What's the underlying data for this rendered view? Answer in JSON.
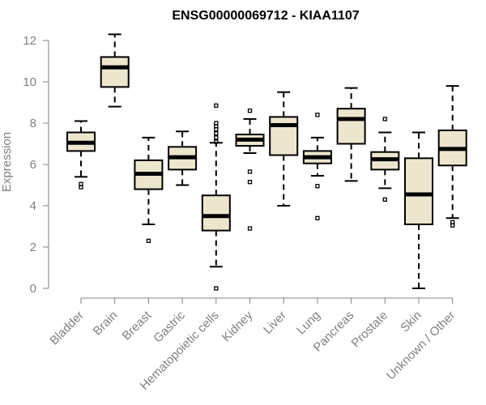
{
  "chart_data": {
    "type": "boxplot",
    "title": "ENSG00000069712 - KIAA1107",
    "xlabel": "",
    "ylabel": "Expression",
    "ylim": [
      0,
      12.2
    ],
    "yticks": [
      0,
      2,
      4,
      6,
      8,
      10,
      12
    ],
    "box_color": "#ede6ce",
    "categories": [
      "Bladder",
      "Brain",
      "Breast",
      "Gastric",
      "Hematopoietic cells",
      "Kidney",
      "Liver",
      "Lung",
      "Pancreas",
      "Prostate",
      "Skin",
      "Unknown / Other"
    ],
    "boxes": [
      {
        "category": "Bladder",
        "whisker_low": 5.4,
        "q1": 6.65,
        "median": 7.05,
        "q3": 7.55,
        "whisker_high": 8.1,
        "outliers": [
          4.9,
          5.05
        ]
      },
      {
        "category": "Brain",
        "whisker_low": 8.8,
        "q1": 9.75,
        "median": 10.7,
        "q3": 11.2,
        "whisker_high": 12.3,
        "outliers": []
      },
      {
        "category": "Breast",
        "whisker_low": 3.1,
        "q1": 4.8,
        "median": 5.55,
        "q3": 6.2,
        "whisker_high": 7.3,
        "outliers": [
          2.3
        ]
      },
      {
        "category": "Gastric",
        "whisker_low": 5.0,
        "q1": 5.75,
        "median": 6.35,
        "q3": 6.85,
        "whisker_high": 7.6,
        "outliers": []
      },
      {
        "category": "Hematopoietic cells",
        "whisker_low": 1.05,
        "q1": 2.8,
        "median": 3.5,
        "q3": 4.5,
        "whisker_high": 7.05,
        "outliers": [
          0.0,
          7.1,
          7.3,
          7.5,
          7.7,
          7.85,
          8.0,
          8.85
        ]
      },
      {
        "category": "Kidney",
        "whisker_low": 6.55,
        "q1": 6.9,
        "median": 7.2,
        "q3": 7.45,
        "whisker_high": 8.2,
        "outliers": [
          2.9,
          5.15,
          5.65,
          8.6
        ]
      },
      {
        "category": "Liver",
        "whisker_low": 4.0,
        "q1": 6.45,
        "median": 7.9,
        "q3": 8.3,
        "whisker_high": 9.5,
        "outliers": []
      },
      {
        "category": "Lung",
        "whisker_low": 5.45,
        "q1": 6.05,
        "median": 6.35,
        "q3": 6.65,
        "whisker_high": 7.3,
        "outliers": [
          3.4,
          4.95,
          8.4
        ]
      },
      {
        "category": "Pancreas",
        "whisker_low": 5.2,
        "q1": 7.0,
        "median": 8.2,
        "q3": 8.7,
        "whisker_high": 9.7,
        "outliers": []
      },
      {
        "category": "Prostate",
        "whisker_low": 4.85,
        "q1": 5.75,
        "median": 6.25,
        "q3": 6.6,
        "whisker_high": 7.55,
        "outliers": [
          4.3,
          8.2
        ]
      },
      {
        "category": "Skin",
        "whisker_low": 0.0,
        "q1": 3.1,
        "median": 4.55,
        "q3": 6.3,
        "whisker_high": 7.55,
        "outliers": []
      },
      {
        "category": "Unknown / Other",
        "whisker_low": 3.4,
        "q1": 5.95,
        "median": 6.75,
        "q3": 7.65,
        "whisker_high": 9.8,
        "outliers": [
          3.05,
          3.2
        ]
      }
    ]
  }
}
